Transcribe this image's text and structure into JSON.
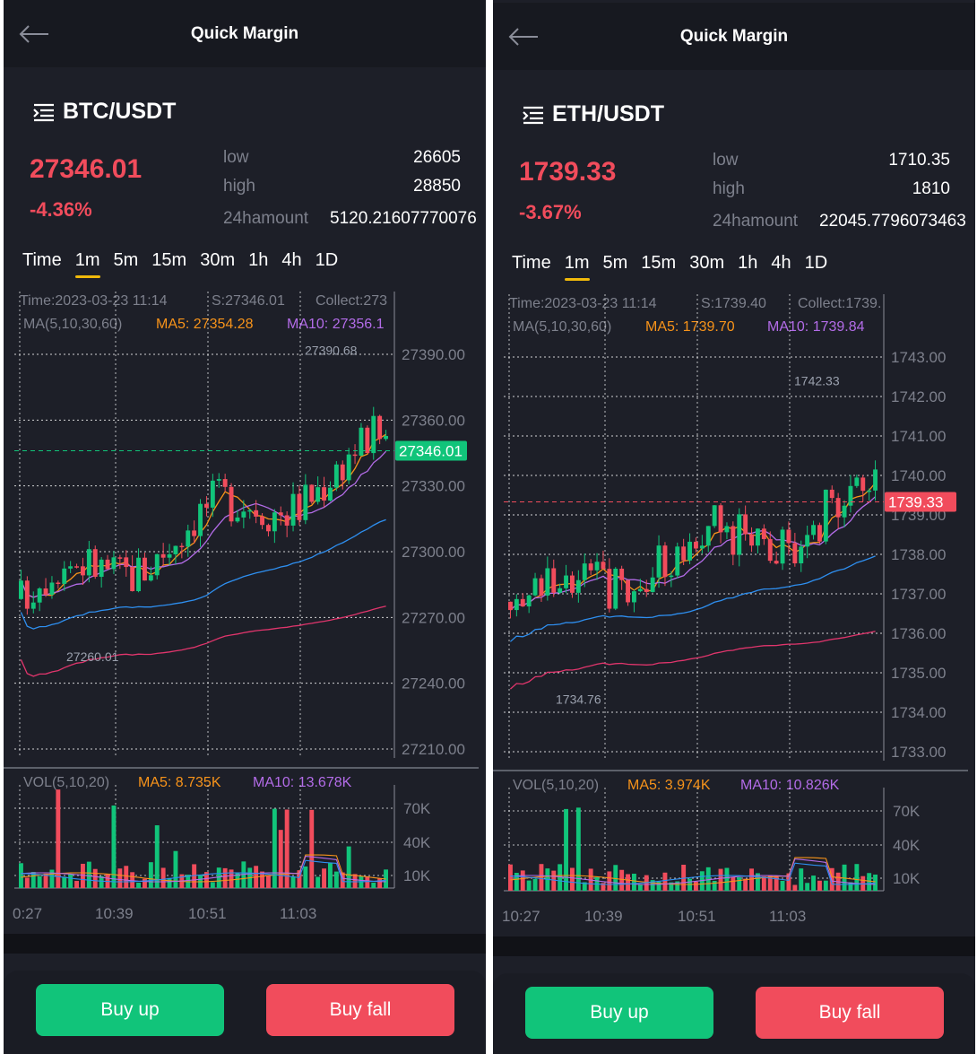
{
  "panels": [
    {
      "header": {
        "title": "Quick Margin",
        "back_icon": "arrow-left-icon"
      },
      "pair": {
        "icon": "menu-lines-icon",
        "name": "BTC/USDT"
      },
      "price": "27346.01",
      "change": "-4.36%",
      "stats": {
        "low_label": "low",
        "low_value": "26605",
        "high_label": "high",
        "high_value": "28850",
        "amount_label": "24hamount",
        "amount_value": "5120.21607770076"
      },
      "tabs": [
        "Time",
        "1m",
        "5m",
        "15m",
        "30m",
        "1h",
        "4h",
        "1D"
      ],
      "active_tab": "1m",
      "chart_info": {
        "time": "Time:2023-03-23 11:14",
        "s": "S:27346.01",
        "collect": "Collect:273",
        "ma_label": "MA(5,10,30,60)",
        "ma5": "MA5: 27354.28",
        "ma10": "MA10: 27356.1",
        "max_label": "27390.68",
        "min_label": "27260.01",
        "current_price": "27346.01",
        "vol_label": "VOL(5,10,20)",
        "vol_ma5": "MA5: 8.735K",
        "vol_ma10": "MA10: 13.678K"
      },
      "buttons": {
        "up": "Buy up",
        "fall": "Buy fall"
      },
      "chart_data": {
        "type": "candlestick",
        "price_axis": [
          "27390.00",
          "27360.00",
          "27330.00",
          "27300.00",
          "27270.00",
          "27240.00",
          "27210.00"
        ],
        "price_range": [
          27210,
          27390
        ],
        "volume_axis": [
          "70K",
          "40K",
          "10K"
        ],
        "time_labels": [
          "0:27",
          "10:39",
          "10:51",
          "11:03"
        ],
        "grid": true,
        "last_price": 27346.01,
        "high_marker": 27390.68,
        "low_marker": 27260.01,
        "ma_series": [
          "MA5",
          "MA10",
          "MA30",
          "MA60"
        ],
        "colors": {
          "up": "#11c47a",
          "down": "#f14c5c",
          "ma5": "#f7931a",
          "ma10": "#b36ce8",
          "ma30": "#2e8ff0",
          "ma60": "#e0356c"
        }
      }
    },
    {
      "header": {
        "title": "Quick Margin",
        "back_icon": "arrow-left-icon"
      },
      "pair": {
        "icon": "menu-lines-icon",
        "name": "ETH/USDT"
      },
      "price": "1739.33",
      "change": "-3.67%",
      "stats": {
        "low_label": "low",
        "low_value": "1710.35",
        "high_label": "high",
        "high_value": "1810",
        "amount_label": "24hamount",
        "amount_value": "22045.7796073463"
      },
      "tabs": [
        "Time",
        "1m",
        "5m",
        "15m",
        "30m",
        "1h",
        "4h",
        "1D"
      ],
      "active_tab": "1m",
      "chart_info": {
        "time": "Time:2023-03-23 11:14",
        "s": "S:1739.40",
        "collect": "Collect:1739.",
        "ma_label": "MA(5,10,30,60)",
        "ma5": "MA5: 1739.70",
        "ma10": "MA10: 1739.84",
        "max_label": "1742.33",
        "min_label": "1734.76",
        "current_price": "1739.33",
        "vol_label": "VOL(5,10,20)",
        "vol_ma5": "MA5: 3.974K",
        "vol_ma10": "MA10: 10.826K"
      },
      "buttons": {
        "up": "Buy up",
        "fall": "Buy fall"
      },
      "chart_data": {
        "type": "candlestick",
        "price_axis": [
          "1743.00",
          "1742.00",
          "1741.00",
          "1740.00",
          "1739.00",
          "1738.00",
          "1737.00",
          "1736.00",
          "1735.00",
          "1734.00",
          "1733.00"
        ],
        "price_range": [
          1733,
          1743
        ],
        "volume_axis": [
          "70K",
          "40K",
          "10K"
        ],
        "time_labels": [
          "10:27",
          "10:39",
          "10:51",
          "11:03"
        ],
        "grid": true,
        "last_price": 1739.33,
        "high_marker": 1742.33,
        "low_marker": 1734.76,
        "ma_series": [
          "MA5",
          "MA10",
          "MA30",
          "MA60"
        ],
        "colors": {
          "up": "#11c47a",
          "down": "#f14c5c",
          "ma5": "#f7931a",
          "ma10": "#b36ce8",
          "ma30": "#2e8ff0",
          "ma60": "#e0356c"
        }
      }
    }
  ]
}
